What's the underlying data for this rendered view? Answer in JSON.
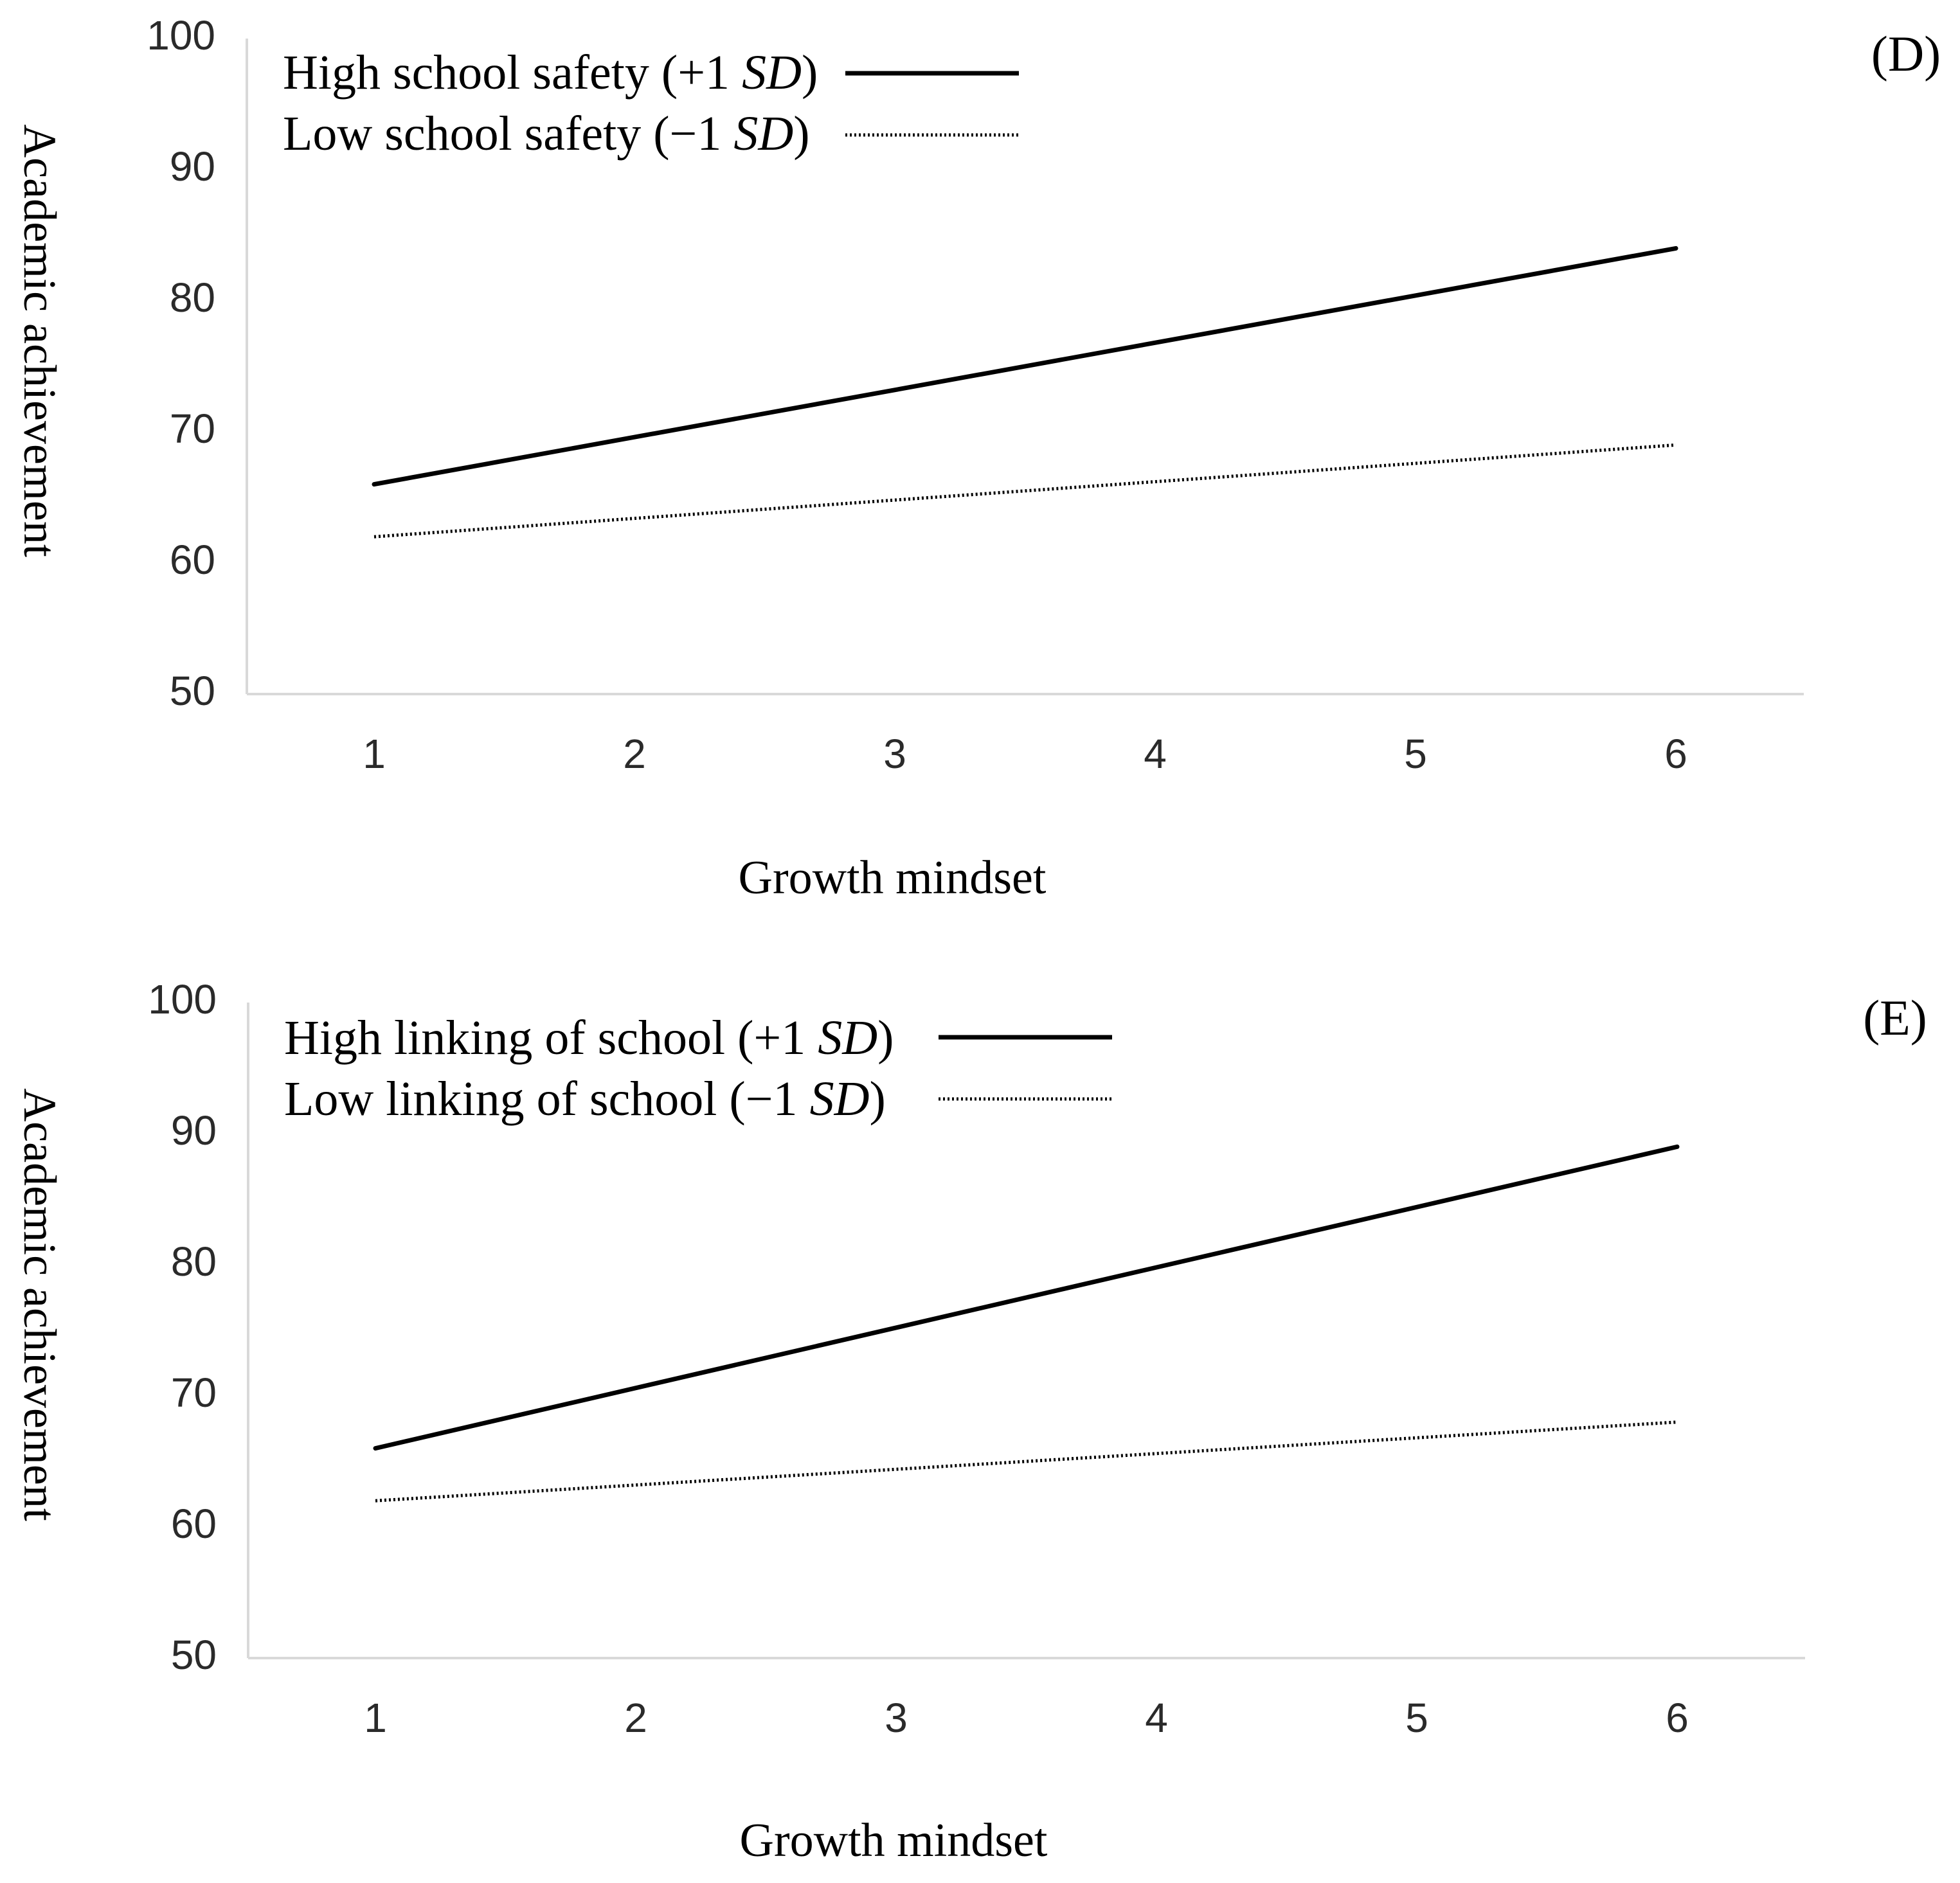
{
  "chart_data": [
    {
      "type": "line",
      "panel_label": "(D)",
      "xlabel": "Growth mindset",
      "ylabel": "Academic achievement",
      "x": [
        1,
        6
      ],
      "xticks": [
        "1",
        "2",
        "3",
        "4",
        "5",
        "6"
      ],
      "xlim": [
        0.5,
        6.5
      ],
      "ylim": [
        50,
        100
      ],
      "yticks": [
        "50",
        "60",
        "70",
        "80",
        "90",
        "100"
      ],
      "grid": false,
      "legend_position": "top-left",
      "series": [
        {
          "name": "High school safety",
          "suffix_prefix": "(+1 ",
          "suffix_sd": "SD",
          "suffix_close": ")",
          "style": "solid",
          "values": [
            66,
            84
          ]
        },
        {
          "name": "Low school safety",
          "suffix_prefix": "(−1 ",
          "suffix_sd": "SD",
          "suffix_close": ")",
          "style": "dotted",
          "values": [
            62,
            69
          ]
        }
      ]
    },
    {
      "type": "line",
      "panel_label": "(E)",
      "xlabel": "Growth mindset",
      "ylabel": "Academic achievement",
      "x": [
        1,
        6
      ],
      "xticks": [
        "1",
        "2",
        "3",
        "4",
        "5",
        "6"
      ],
      "xlim": [
        0.5,
        6.5
      ],
      "ylim": [
        50,
        100
      ],
      "yticks": [
        "50",
        "60",
        "70",
        "80",
        "90",
        "100"
      ],
      "grid": false,
      "legend_position": "top-left",
      "series": [
        {
          "name": "High linking of school",
          "suffix_prefix": "(+1 ",
          "suffix_sd": "SD",
          "suffix_close": ")",
          "style": "solid",
          "values": [
            66,
            89
          ]
        },
        {
          "name": "Low linking of school",
          "suffix_prefix": "(−1 ",
          "suffix_sd": "SD",
          "suffix_close": ")",
          "style": "dotted",
          "values": [
            62,
            68
          ]
        }
      ]
    }
  ]
}
